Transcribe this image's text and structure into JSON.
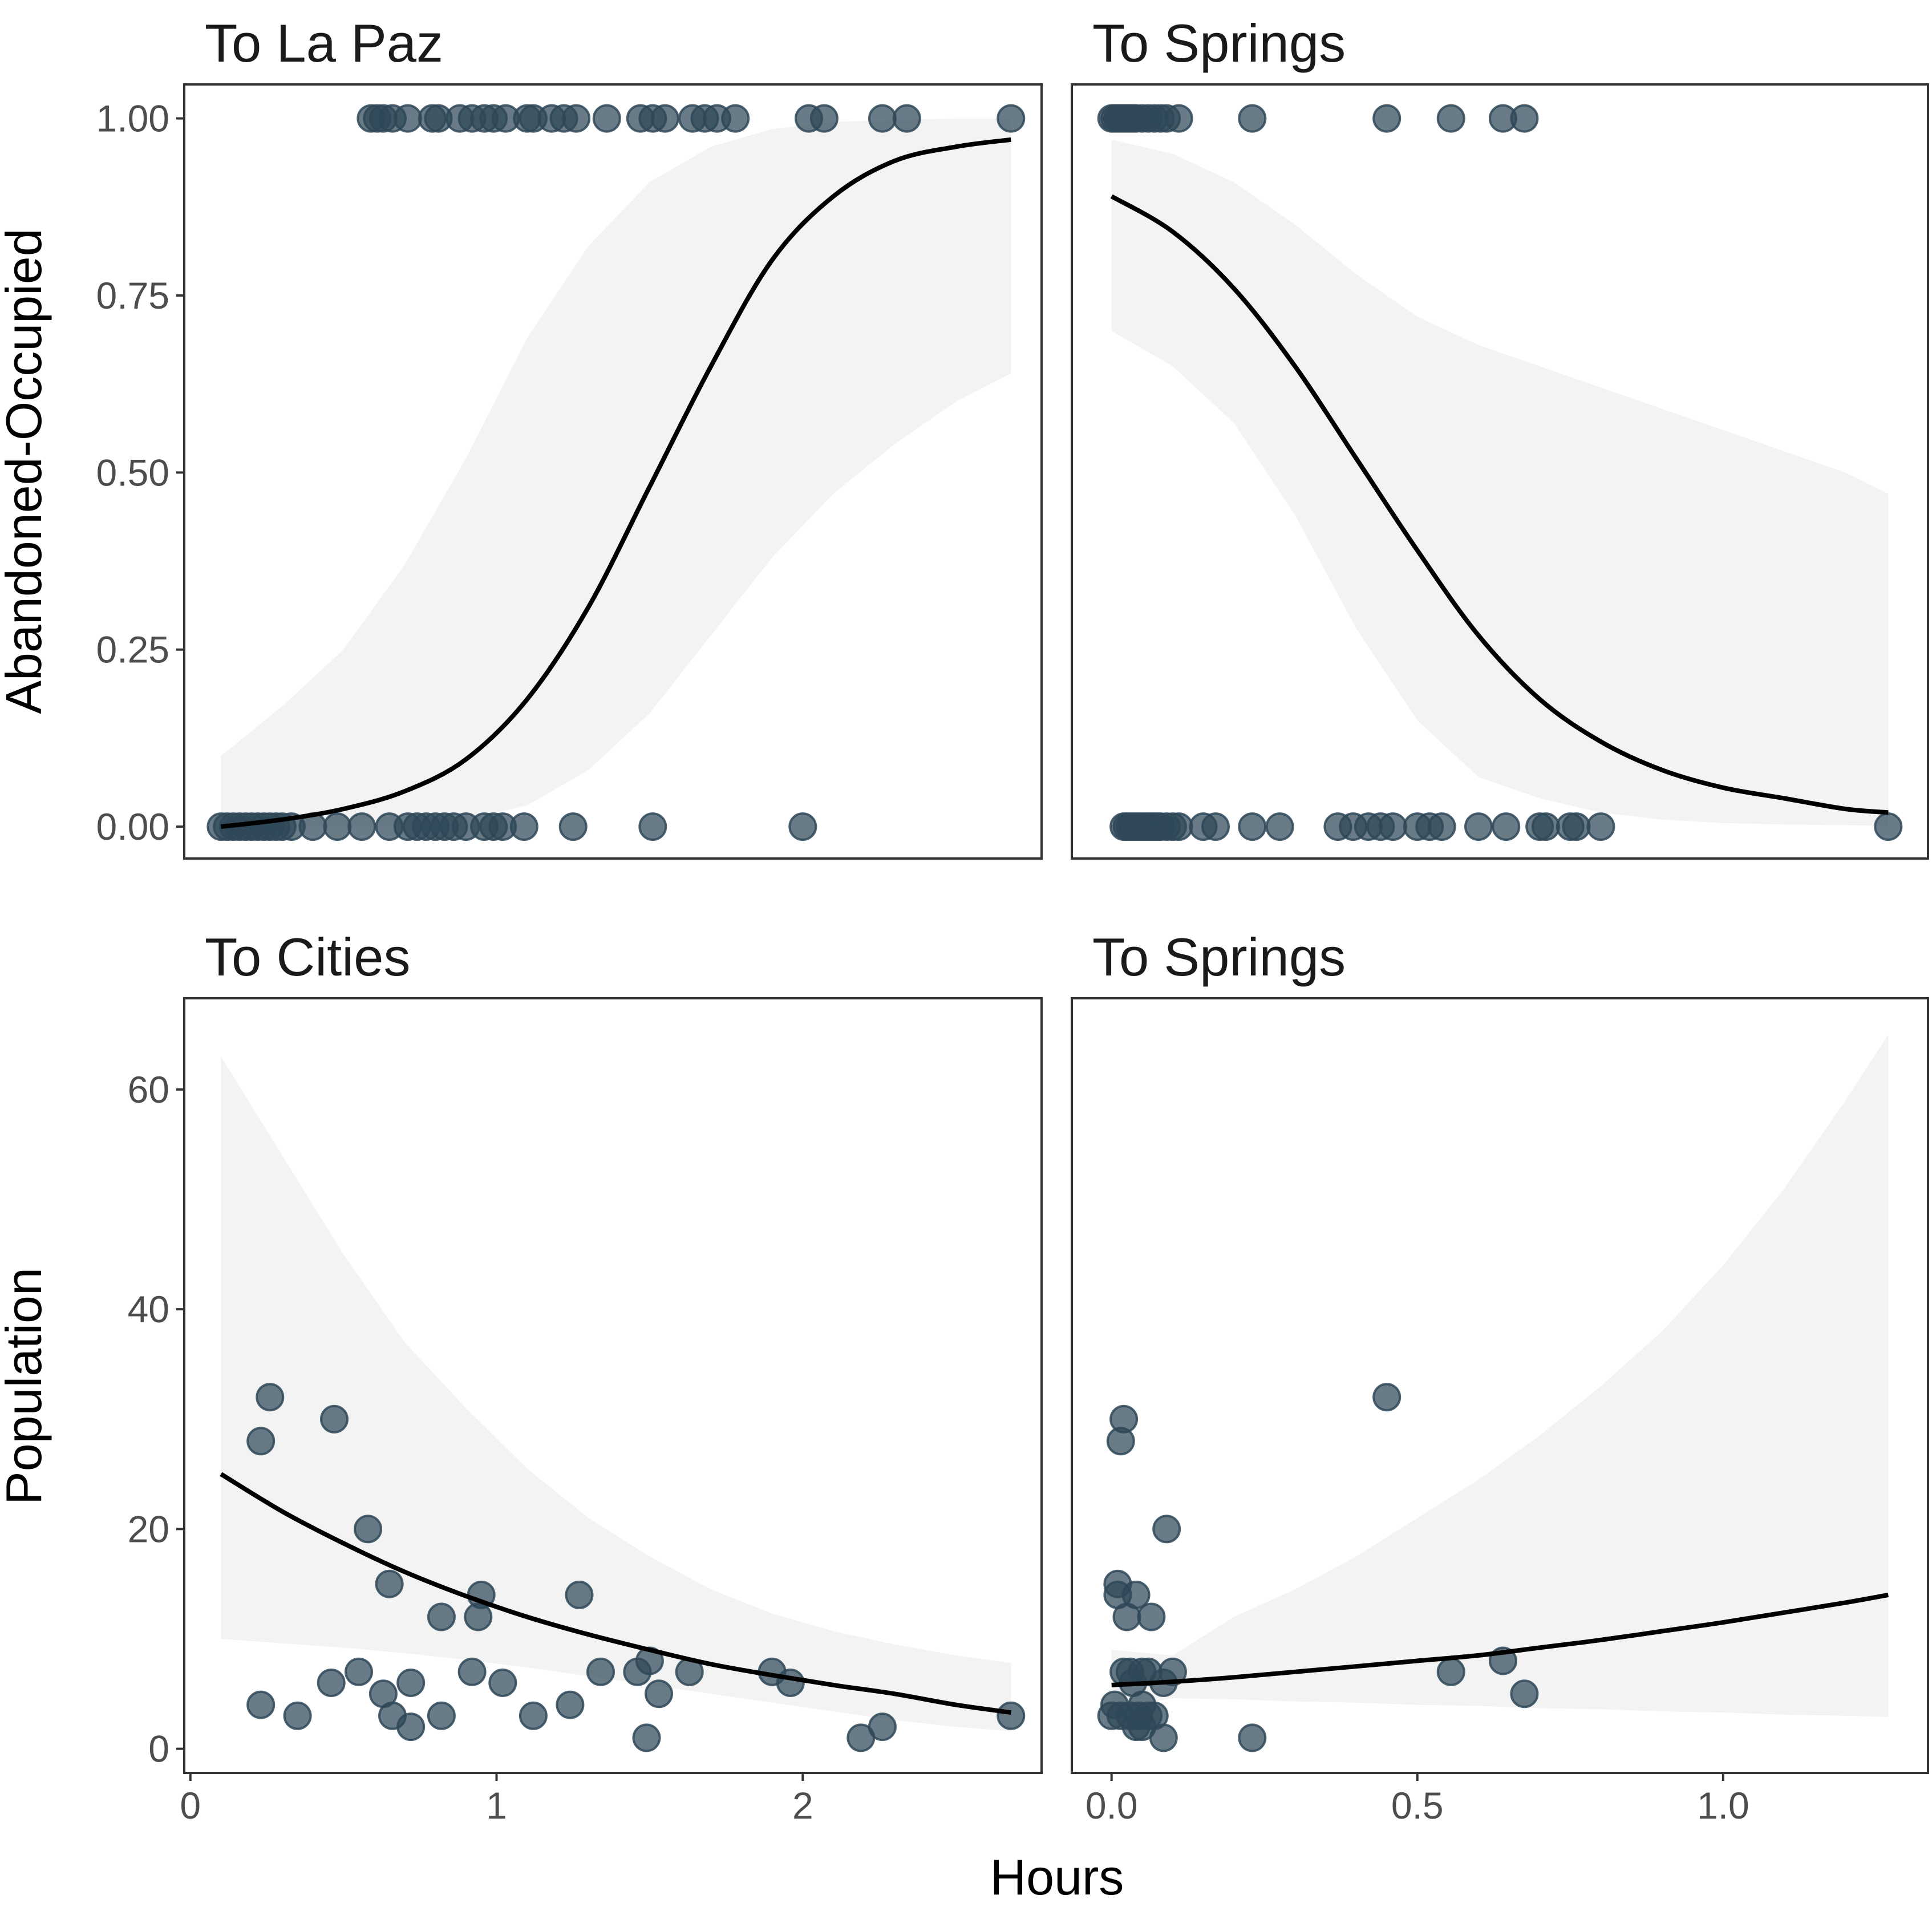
{
  "chart_data": [
    {
      "type": "scatter",
      "title": "To La Paz",
      "ylabel": "Abandoned-Occupied",
      "xlim": [
        -0.02,
        2.78
      ],
      "ylim": [
        -0.045,
        1.048
      ],
      "x_ticks": [],
      "y_ticks": [
        0,
        0.25,
        0.5,
        0.75,
        1.0
      ],
      "y_tick_labels": [
        "0.00",
        "0.25",
        "0.50",
        "0.75",
        "1.00"
      ],
      "points": {
        "x": [
          0.1,
          0.12,
          0.14,
          0.16,
          0.18,
          0.2,
          0.22,
          0.24,
          0.26,
          0.28,
          0.3,
          0.33,
          0.4,
          0.48,
          0.56,
          0.65,
          0.71,
          0.74,
          0.77,
          0.8,
          0.83,
          0.86,
          0.9,
          0.96,
          0.99,
          1.02,
          1.09,
          1.25,
          1.51,
          2.0,
          0.59,
          0.61,
          0.63,
          0.66,
          0.71,
          0.79,
          0.81,
          0.88,
          0.92,
          0.96,
          0.99,
          1.03,
          1.1,
          1.12,
          1.18,
          1.22,
          1.26,
          1.36,
          1.47,
          1.51,
          1.55,
          1.64,
          1.68,
          1.72,
          1.78,
          2.02,
          2.07,
          2.26,
          2.34,
          2.68
        ],
        "y": [
          0,
          0,
          0,
          0,
          0,
          0,
          0,
          0,
          0,
          0,
          0,
          0,
          0,
          0,
          0,
          0,
          0,
          0,
          0,
          0,
          0,
          0,
          0,
          0,
          0,
          0,
          0,
          0,
          0,
          0,
          1,
          1,
          1,
          1,
          1,
          1,
          1,
          1,
          1,
          1,
          1,
          1,
          1,
          1,
          1,
          1,
          1,
          1,
          1,
          1,
          1,
          1,
          1,
          1,
          1,
          1,
          1,
          1,
          1,
          1
        ]
      },
      "fit": {
        "x": [
          0.1,
          0.3,
          0.5,
          0.7,
          0.9,
          1.1,
          1.3,
          1.5,
          1.7,
          1.9,
          2.1,
          2.3,
          2.5,
          2.68
        ],
        "y": [
          0.0,
          0.01,
          0.025,
          0.05,
          0.095,
          0.18,
          0.31,
          0.48,
          0.65,
          0.8,
          0.89,
          0.94,
          0.96,
          0.97
        ],
        "lower": [
          0.0,
          0.0,
          0.0,
          0.0,
          0.01,
          0.03,
          0.08,
          0.16,
          0.27,
          0.38,
          0.47,
          0.54,
          0.6,
          0.64
        ],
        "upper": [
          0.1,
          0.17,
          0.25,
          0.37,
          0.52,
          0.69,
          0.82,
          0.91,
          0.96,
          0.985,
          0.995,
          0.998,
          1.0,
          1.0
        ]
      }
    },
    {
      "type": "scatter",
      "title": "To Springs",
      "xlim": [
        -0.065,
        1.335
      ],
      "ylim": [
        -0.045,
        1.048
      ],
      "x_ticks": [],
      "y_ticks": [],
      "points": {
        "x": [
          0.02,
          0.025,
          0.03,
          0.035,
          0.04,
          0.045,
          0.05,
          0.055,
          0.06,
          0.065,
          0.07,
          0.075,
          0.08,
          0.09,
          0.1,
          0.11,
          0.15,
          0.17,
          0.23,
          0.275,
          0.37,
          0.395,
          0.42,
          0.44,
          0.46,
          0.5,
          0.52,
          0.54,
          0.6,
          0.645,
          0.7,
          0.71,
          0.75,
          0.76,
          0.8,
          1.27,
          0.0,
          0.005,
          0.01,
          0.015,
          0.02,
          0.025,
          0.03,
          0.035,
          0.04,
          0.05,
          0.06,
          0.07,
          0.08,
          0.09,
          0.11,
          0.23,
          0.45,
          0.555,
          0.64,
          0.675
        ],
        "y": [
          0,
          0,
          0,
          0,
          0,
          0,
          0,
          0,
          0,
          0,
          0,
          0,
          0,
          0,
          0,
          0,
          0,
          0,
          0,
          0,
          0,
          0,
          0,
          0,
          0,
          0,
          0,
          0,
          0,
          0,
          0,
          0,
          0,
          0,
          0,
          0,
          1,
          1,
          1,
          1,
          1,
          1,
          1,
          1,
          1,
          1,
          1,
          1,
          1,
          1,
          1,
          1,
          1,
          1,
          1,
          1
        ]
      },
      "fit": {
        "x": [
          0.0,
          0.1,
          0.2,
          0.3,
          0.4,
          0.5,
          0.6,
          0.7,
          0.8,
          0.9,
          1.0,
          1.1,
          1.2,
          1.27
        ],
        "y": [
          0.89,
          0.84,
          0.76,
          0.65,
          0.52,
          0.39,
          0.27,
          0.18,
          0.12,
          0.08,
          0.055,
          0.04,
          0.025,
          0.02
        ],
        "lower": [
          0.7,
          0.65,
          0.57,
          0.44,
          0.28,
          0.15,
          0.07,
          0.04,
          0.02,
          0.01,
          0.005,
          0.003,
          0.002,
          0.001
        ],
        "upper": [
          0.97,
          0.95,
          0.91,
          0.85,
          0.78,
          0.72,
          0.68,
          0.65,
          0.62,
          0.59,
          0.56,
          0.53,
          0.5,
          0.47
        ]
      }
    },
    {
      "type": "scatter",
      "title": "To Cities",
      "ylabel": "Population",
      "xlim": [
        -0.02,
        2.78
      ],
      "ylim": [
        -2.2,
        68.3
      ],
      "x_ticks": [
        0,
        1,
        2
      ],
      "x_tick_labels": [
        "0",
        "1",
        "2"
      ],
      "y_ticks": [
        0,
        20,
        40,
        60
      ],
      "y_tick_labels": [
        "0",
        "20",
        "40",
        "60"
      ],
      "points": {
        "x": [
          0.26,
          0.23,
          0.47,
          0.58,
          0.65,
          0.82,
          0.95,
          0.94,
          0.23,
          0.35,
          0.46,
          0.55,
          0.63,
          0.66,
          0.72,
          0.72,
          0.82,
          0.92,
          1.02,
          1.12,
          1.24,
          1.27,
          1.34,
          1.46,
          1.5,
          1.49,
          1.53,
          1.63,
          1.9,
          1.96,
          2.19,
          2.26,
          2.68
        ],
        "y": [
          32,
          28,
          30,
          20,
          15,
          12,
          14,
          12,
          4,
          3,
          6,
          7,
          5,
          3,
          2,
          6,
          3,
          7,
          6,
          3,
          4,
          14,
          7,
          7,
          8,
          1,
          5,
          7,
          7,
          6,
          1,
          2,
          3
        ]
      },
      "fit": {
        "x": [
          0.1,
          0.3,
          0.5,
          0.7,
          0.9,
          1.1,
          1.3,
          1.5,
          1.7,
          1.9,
          2.1,
          2.3,
          2.5,
          2.68
        ],
        "y": [
          25,
          21.6,
          18.7,
          16.1,
          13.9,
          12.0,
          10.4,
          9.0,
          7.7,
          6.7,
          5.8,
          5.0,
          4.0,
          3.3
        ],
        "lower": [
          10,
          9.6,
          9.2,
          8.7,
          8.1,
          7.4,
          6.6,
          5.8,
          5.0,
          4.2,
          3.4,
          2.6,
          2.0,
          1.6
        ],
        "upper": [
          63,
          54,
          45,
          37,
          31,
          25.5,
          21,
          17.5,
          14.5,
          12.3,
          10.7,
          9.5,
          8.5,
          7.8
        ]
      }
    },
    {
      "type": "scatter",
      "title": "To Springs",
      "xlabel": "Hours",
      "xlim": [
        -0.065,
        1.335
      ],
      "ylim": [
        -2.2,
        68.3
      ],
      "x_ticks": [
        0,
        0.5,
        1.0
      ],
      "x_tick_labels": [
        "0.0",
        "0.5",
        "1.0"
      ],
      "y_ticks": [],
      "points": {
        "x": [
          0.45,
          0.02,
          0.015,
          0.09,
          0.01,
          0.01,
          0.04,
          0.025,
          0.065,
          0.02,
          0.03,
          0.035,
          0.05,
          0.06,
          0.085,
          0.1,
          0.555,
          0.64,
          0.675,
          0.0,
          0.005,
          0.015,
          0.03,
          0.045,
          0.05,
          0.06,
          0.07,
          0.04,
          0.05,
          0.085,
          0.23
        ],
        "y": [
          32,
          30,
          28,
          20,
          15,
          14,
          14,
          12,
          12,
          7,
          7,
          6,
          7,
          7,
          6,
          7,
          7,
          8,
          5,
          3,
          4,
          3,
          3,
          3,
          4,
          3,
          3,
          2,
          2,
          1,
          1
        ]
      },
      "fit": {
        "x": [
          0.0,
          0.1,
          0.2,
          0.3,
          0.4,
          0.5,
          0.6,
          0.7,
          0.8,
          0.9,
          1.0,
          1.1,
          1.2,
          1.27
        ],
        "y": [
          5.8,
          6.1,
          6.5,
          7.0,
          7.5,
          8.0,
          8.5,
          9.2,
          9.9,
          10.7,
          11.5,
          12.4,
          13.3,
          14.0
        ],
        "lower": [
          3.6,
          4.6,
          4.5,
          4.3,
          4.2,
          4.0,
          3.9,
          3.7,
          3.6,
          3.4,
          3.3,
          3.1,
          3.0,
          2.9
        ],
        "upper": [
          9.0,
          8.5,
          12.0,
          14.5,
          17.5,
          21.0,
          24.5,
          28.5,
          33.0,
          38.0,
          44.0,
          51.0,
          59.0,
          65.0
        ]
      }
    }
  ]
}
